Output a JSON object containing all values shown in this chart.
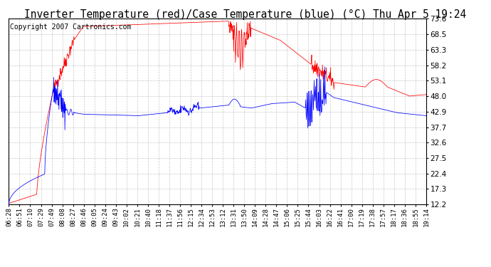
{
  "title": "Inverter Temperature (red)/Case Temperature (blue) (°C) Thu Apr 5 19:24",
  "copyright": "Copyright 2007 Cartronics.com",
  "yticks": [
    12.2,
    17.3,
    22.4,
    27.5,
    32.6,
    37.7,
    42.9,
    48.0,
    53.1,
    58.2,
    63.3,
    68.5,
    73.6
  ],
  "ylim": [
    12.2,
    73.6
  ],
  "xtick_labels": [
    "06:28",
    "06:51",
    "07:10",
    "07:29",
    "07:49",
    "08:08",
    "08:27",
    "08:46",
    "09:05",
    "09:24",
    "09:43",
    "10:02",
    "10:21",
    "10:40",
    "11:18",
    "11:37",
    "11:56",
    "12:15",
    "12:34",
    "12:53",
    "13:12",
    "13:31",
    "13:50",
    "14:09",
    "14:28",
    "14:47",
    "15:06",
    "15:25",
    "15:44",
    "16:03",
    "16:22",
    "16:41",
    "17:00",
    "17:19",
    "17:38",
    "17:57",
    "18:17",
    "18:36",
    "18:55",
    "19:14"
  ],
  "background_color": "#ffffff",
  "plot_bg_color": "#ffffff",
  "grid_color": "#c8c8c8",
  "red_color": "#ff0000",
  "blue_color": "#0000ff",
  "title_fontsize": 10.5,
  "copyright_fontsize": 7,
  "tick_fontsize": 6.5,
  "ytick_fontsize": 7.5
}
